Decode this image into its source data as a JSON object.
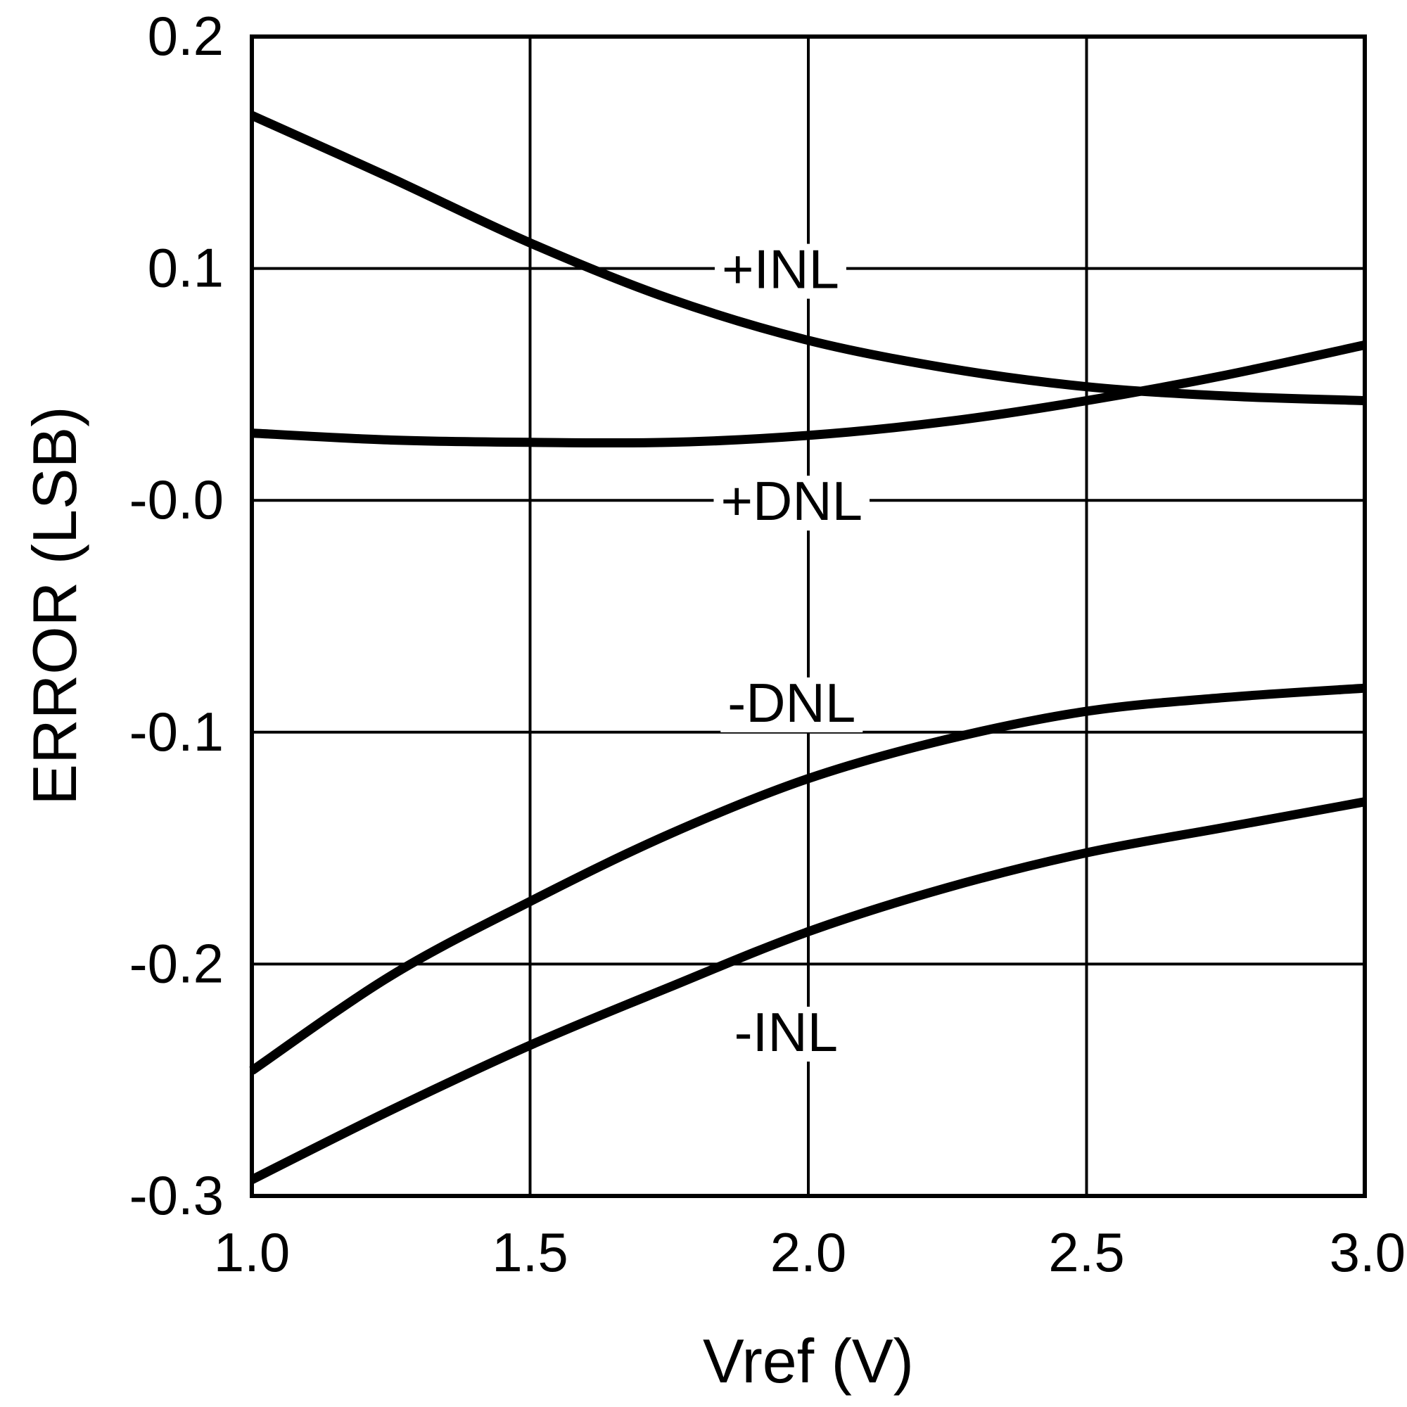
{
  "chart_data": {
    "type": "line",
    "title": "",
    "xlabel": "Vref (V)",
    "ylabel": "ERROR (LSB)",
    "xlim": [
      1.0,
      3.0
    ],
    "ylim": [
      -0.3,
      0.2
    ],
    "grid": true,
    "x_ticks": [
      1.0,
      1.5,
      2.0,
      2.5,
      3.0
    ],
    "x_tick_labels": [
      "1.0",
      "1.5",
      "2.0",
      "2.5",
      "3.0"
    ],
    "y_ticks": [
      0.2,
      0.1,
      0.0,
      -0.1,
      -0.2,
      -0.3
    ],
    "y_tick_labels": [
      "0.2",
      "0.1",
      "-0.0",
      "-0.1",
      "-0.2",
      "-0.3"
    ],
    "series": [
      {
        "name": "+INL",
        "x": [
          1.0,
          1.25,
          1.5,
          1.75,
          2.0,
          2.25,
          2.5,
          2.75,
          3.0
        ],
        "values": [
          0.166,
          0.139,
          0.111,
          0.087,
          0.069,
          0.057,
          0.049,
          0.045,
          0.043
        ]
      },
      {
        "name": "+DNL",
        "x": [
          1.0,
          1.25,
          1.5,
          1.75,
          2.0,
          2.25,
          2.5,
          2.75,
          3.0
        ],
        "values": [
          0.029,
          0.026,
          0.025,
          0.025,
          0.028,
          0.034,
          0.043,
          0.054,
          0.067
        ]
      },
      {
        "name": "-DNL",
        "x": [
          1.0,
          1.25,
          1.5,
          1.75,
          2.0,
          2.25,
          2.5,
          2.75,
          3.0
        ],
        "values": [
          -0.246,
          -0.205,
          -0.173,
          -0.144,
          -0.12,
          -0.103,
          -0.091,
          -0.085,
          -0.081
        ]
      },
      {
        "name": "-INL",
        "x": [
          1.0,
          1.25,
          1.5,
          1.75,
          2.0,
          2.25,
          2.5,
          2.75,
          3.0
        ],
        "values": [
          -0.293,
          -0.263,
          -0.235,
          -0.21,
          -0.186,
          -0.167,
          -0.152,
          -0.141,
          -0.13
        ]
      }
    ],
    "annotations": [
      {
        "text": "+INL",
        "series": "+INL",
        "x": 1.95,
        "y": 0.1
      },
      {
        "text": "+DNL",
        "series": "+DNL",
        "x": 1.97,
        "y": 0.0
      },
      {
        "text": "-DNL",
        "series": "-DNL",
        "x": 1.97,
        "y": -0.087
      },
      {
        "text": "-INL",
        "series": "-INL",
        "x": 1.96,
        "y": -0.229
      }
    ],
    "colors": {
      "background": "#ffffff",
      "ink": "#000000"
    }
  }
}
